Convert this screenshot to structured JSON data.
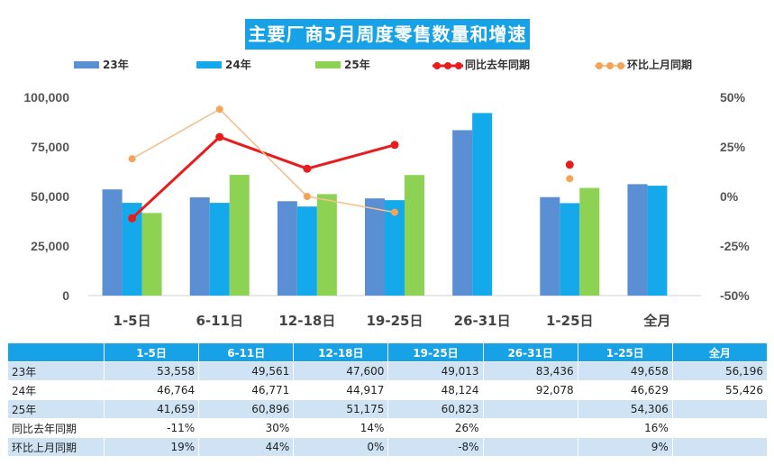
{
  "chart_data": {
    "type": "bar",
    "title": "主要厂商5月周度零售数量和增速",
    "categories": [
      "1-5日",
      "6-11日",
      "12-18日",
      "19-25日",
      "26-31日",
      "1-25日",
      "全月"
    ],
    "series": [
      {
        "name": "23年",
        "values": [
          53558,
          49561,
          47600,
          49013,
          83436,
          49658,
          56196
        ],
        "color": "#5b8fd4"
      },
      {
        "name": "24年",
        "values": [
          46764,
          46771,
          44917,
          48124,
          92078,
          46629,
          55426
        ],
        "color": "#14a9ea"
      },
      {
        "name": "25年",
        "values": [
          41659,
          60896,
          51175,
          60823,
          null,
          54306,
          null
        ],
        "color": "#8ed254"
      }
    ],
    "line_series": [
      {
        "name": "同比去年同期",
        "values": [
          -11,
          30,
          14,
          26,
          null,
          16,
          null
        ],
        "color": "#e81c1c",
        "axis": "right"
      },
      {
        "name": "环比上月同期",
        "values": [
          19,
          44,
          0,
          -8,
          null,
          9,
          null
        ],
        "color": "#f6c08d",
        "axis": "right"
      }
    ],
    "y_left": {
      "min": 0,
      "max": 100000,
      "ticks": [
        "0",
        "25,000",
        "50,000",
        "75,000",
        "100,000"
      ]
    },
    "y_right": {
      "min": -50,
      "max": 50,
      "ticks": [
        "-50%",
        "-25%",
        "0%",
        "25%",
        "50%"
      ]
    },
    "legend_position": "top",
    "grid": false
  },
  "table": {
    "headers": [
      "1-5日",
      "6-11日",
      "12-18日",
      "19-25日",
      "26-31日",
      "1-25日",
      "全月"
    ],
    "rows": [
      {
        "label": "23年",
        "cells": [
          "53,558",
          "49,561",
          "47,600",
          "49,013",
          "83,436",
          "49,658",
          "56,196"
        ]
      },
      {
        "label": "24年",
        "cells": [
          "46,764",
          "46,771",
          "44,917",
          "48,124",
          "92,078",
          "46,629",
          "55,426"
        ]
      },
      {
        "label": "25年",
        "cells": [
          "41,659",
          "60,896",
          "51,175",
          "60,823",
          "",
          "54,306",
          ""
        ]
      },
      {
        "label": "同比去年同期",
        "cells": [
          "-11%",
          "30%",
          "14%",
          "26%",
          "",
          "16%",
          ""
        ]
      },
      {
        "label": "环比上月同期",
        "cells": [
          "19%",
          "44%",
          "0%",
          "-8%",
          "",
          "9%",
          ""
        ]
      }
    ]
  }
}
